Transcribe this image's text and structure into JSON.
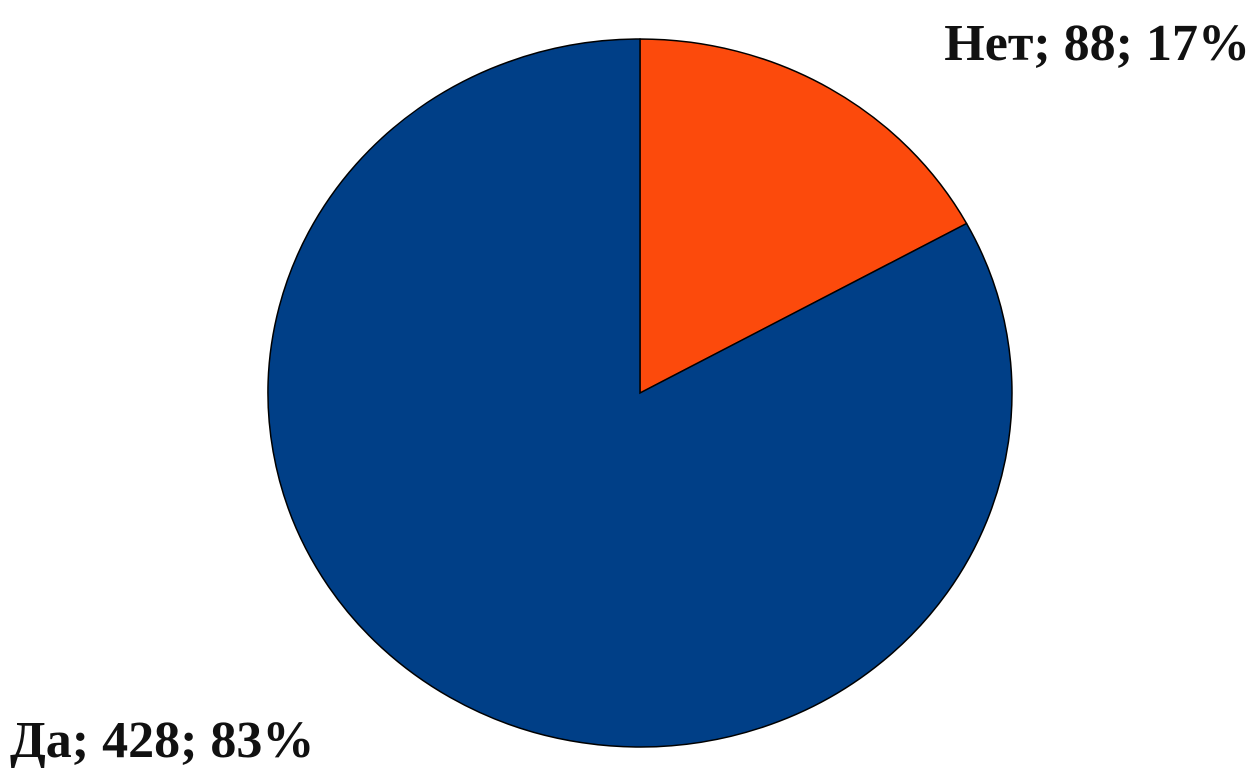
{
  "chart_data": {
    "type": "pie",
    "categories": [
      "Нет",
      "Да"
    ],
    "values": [
      88,
      428
    ],
    "value_labels": [
      "Нет; 88; 17%",
      "Да; 428; 83%"
    ],
    "colors": [
      "#fc4a0c",
      "#003f87"
    ]
  }
}
